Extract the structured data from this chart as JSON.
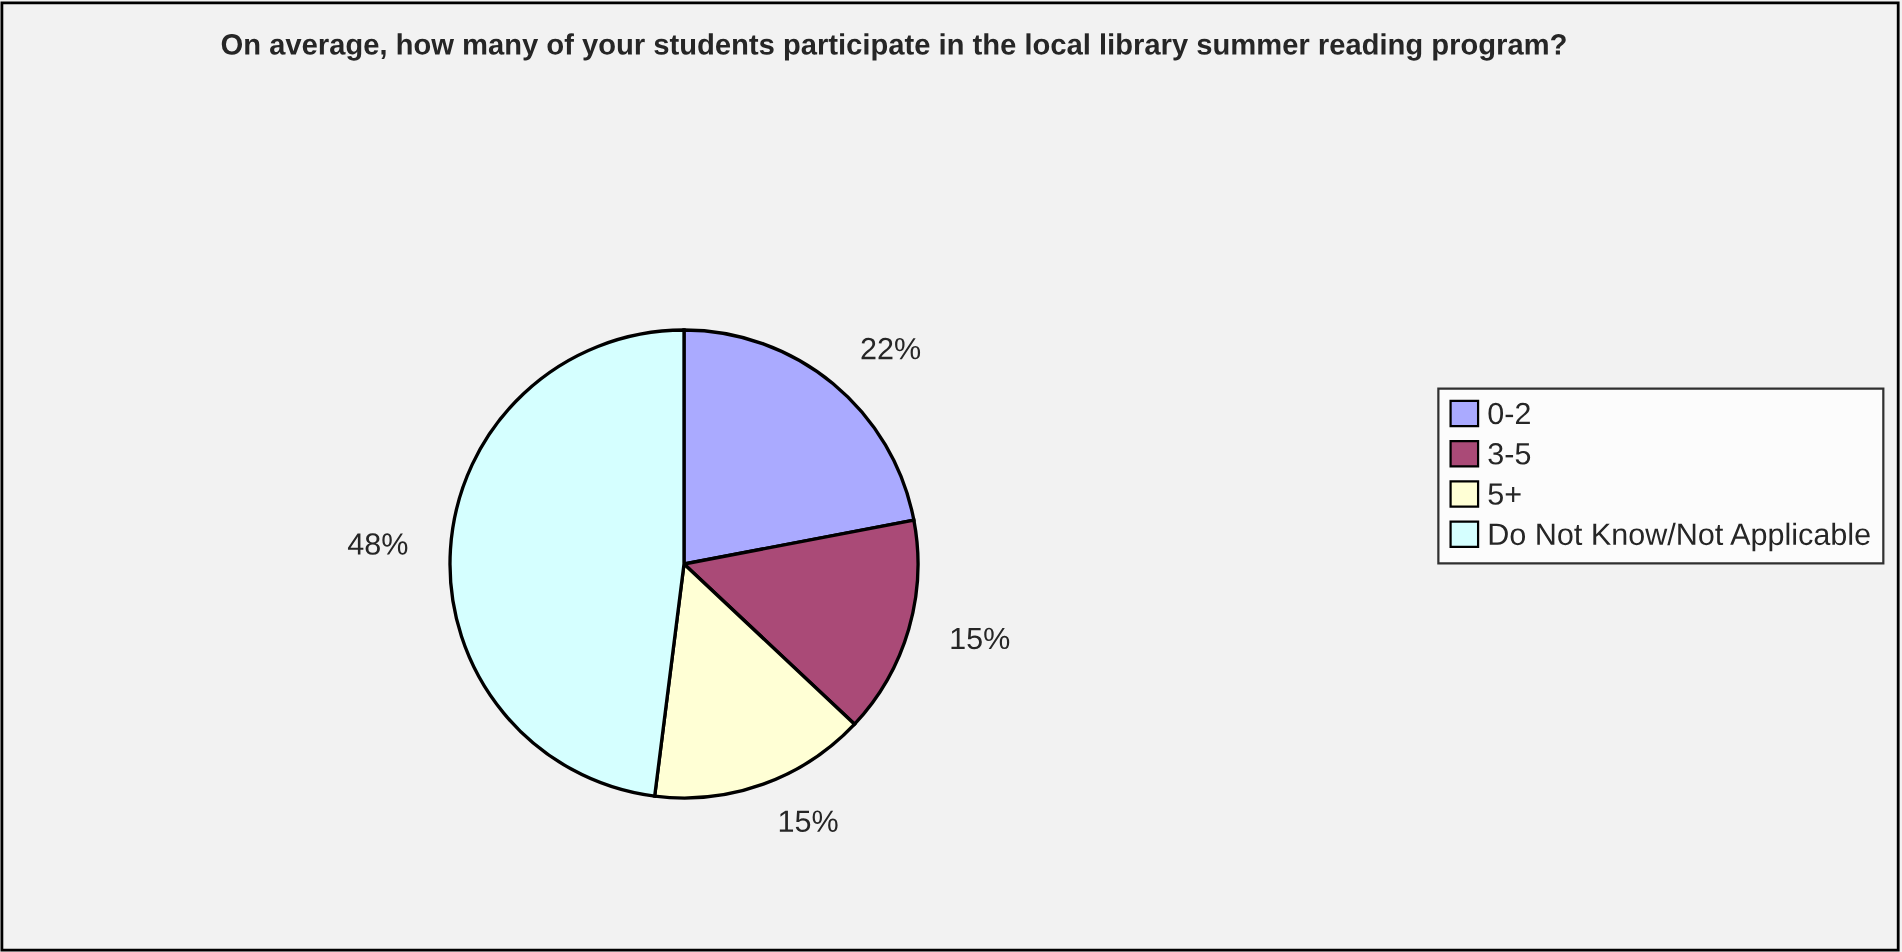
{
  "chart_data": {
    "type": "pie",
    "title": "On average, how many of your students participate in the local library summer reading program?",
    "categories": [
      "0-2",
      "3-5",
      "5+",
      "Do Not Know/Not Applicable"
    ],
    "values": [
      22,
      15,
      15,
      48
    ],
    "value_labels": [
      "22%",
      "15%",
      "15%",
      "48%"
    ],
    "colors": [
      "#aaaaff",
      "#aa4a77",
      "#ffffd5",
      "#d5ffff"
    ],
    "legend": "right"
  }
}
